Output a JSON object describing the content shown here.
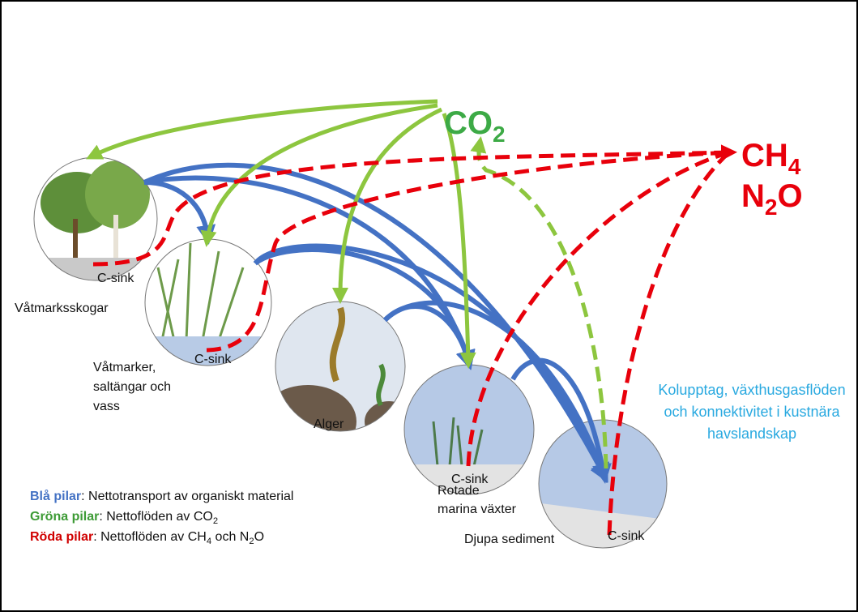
{
  "gases": {
    "co2": [
      "CO",
      "2"
    ],
    "ch4": [
      "CH",
      "4"
    ],
    "n2o": [
      "N",
      "2",
      "O"
    ]
  },
  "habitats": [
    {
      "label": [
        "Våtmarksskogar"
      ],
      "sink": "C-sink"
    },
    {
      "label": [
        "Våtmarker,",
        "saltängar och",
        "vass"
      ],
      "sink": "C-sink"
    },
    {
      "label": [
        "Alger"
      ]
    },
    {
      "label": [
        "Rotade",
        "marina växter"
      ],
      "sink": "C-sink"
    },
    {
      "label": [
        "Djupa sediment"
      ],
      "sink": "C-sink"
    }
  ],
  "caption": [
    "Kolupptag, växthusgasflöden",
    "och konnektivitet i kustnära",
    "havslandskap"
  ],
  "legend": [
    {
      "key": "Blå pilar",
      "text": [
        ": Nettotransport av organiskt material"
      ]
    },
    {
      "key": "Gröna pilar",
      "text": [
        ": Nettoflöden av CO",
        "2"
      ]
    },
    {
      "key": "Röda pilar",
      "text": [
        ": Nettoflöden av CH",
        "4",
        " och N",
        "2",
        "O"
      ]
    }
  ]
}
